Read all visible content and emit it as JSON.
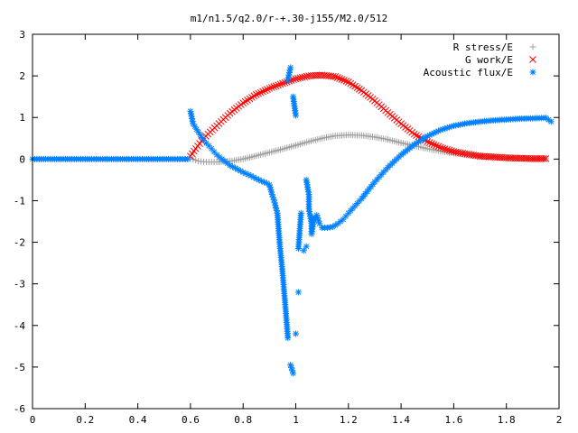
{
  "chart_data": {
    "type": "scatter",
    "title": "m1/n1.5/q2.0/r-+.30-j155/M2.0/512",
    "xlabel": "",
    "ylabel": "",
    "xlim": [
      0,
      2
    ],
    "ylim": [
      -6,
      3
    ],
    "x_ticks": [
      "0",
      "0.2",
      "0.4",
      "0.6",
      "0.8",
      "1",
      "1.2",
      "1.4",
      "1.6",
      "1.8",
      "2"
    ],
    "y_ticks": [
      "-6",
      "-5",
      "-4",
      "-3",
      "-2",
      "-1",
      "0",
      "1",
      "2",
      "3"
    ],
    "grid": false,
    "legend_position": "top-right",
    "series": [
      {
        "name": "R stress/E",
        "marker": "plus",
        "color": "#a0a0a0",
        "x": [
          0.6,
          0.63,
          0.66,
          0.7,
          0.75,
          0.8,
          0.85,
          0.9,
          0.95,
          1.0,
          1.05,
          1.1,
          1.15,
          1.2,
          1.25,
          1.3,
          1.35,
          1.4,
          1.45,
          1.5,
          1.55,
          1.6,
          1.65,
          1.7,
          1.75,
          1.8,
          1.85,
          1.9,
          1.95
        ],
        "y": [
          0.02,
          -0.05,
          -0.07,
          -0.07,
          -0.05,
          0.0,
          0.08,
          0.16,
          0.24,
          0.33,
          0.42,
          0.5,
          0.56,
          0.58,
          0.57,
          0.53,
          0.47,
          0.39,
          0.32,
          0.25,
          0.19,
          0.14,
          0.1,
          0.07,
          0.05,
          0.03,
          0.02,
          0.01,
          0.01
        ]
      },
      {
        "name": "G work/E",
        "marker": "cross",
        "color": "#ff0000",
        "x": [
          0.6,
          0.62,
          0.65,
          0.7,
          0.75,
          0.8,
          0.85,
          0.9,
          0.95,
          1.0,
          1.05,
          1.1,
          1.15,
          1.2,
          1.25,
          1.3,
          1.35,
          1.4,
          1.45,
          1.5,
          1.55,
          1.6,
          1.65,
          1.7,
          1.75,
          1.8,
          1.85,
          1.9,
          1.95
        ],
        "y": [
          0.07,
          0.25,
          0.5,
          0.8,
          1.1,
          1.35,
          1.55,
          1.7,
          1.82,
          1.93,
          2.0,
          2.02,
          1.98,
          1.85,
          1.65,
          1.4,
          1.12,
          0.85,
          0.6,
          0.42,
          0.28,
          0.18,
          0.12,
          0.07,
          0.05,
          0.03,
          0.02,
          0.01,
          0.01
        ]
      },
      {
        "name": "Acoustic flux/E",
        "marker": "star",
        "color": "#0080ff",
        "x": [
          0.0,
          0.05,
          0.1,
          0.15,
          0.2,
          0.25,
          0.3,
          0.35,
          0.4,
          0.45,
          0.5,
          0.55,
          0.59,
          0.6,
          0.61,
          0.63,
          0.65,
          0.68,
          0.7,
          0.73,
          0.75,
          0.78,
          0.8,
          0.83,
          0.85,
          0.87,
          0.89,
          0.9,
          0.91,
          0.92,
          0.93,
          0.94,
          0.95,
          0.96,
          0.97,
          0.97,
          0.98,
          0.98,
          0.99,
          0.99,
          1.0,
          1.0,
          1.01,
          1.01,
          1.02,
          1.03,
          1.04,
          1.04,
          1.05,
          1.05,
          1.06,
          1.06,
          1.07,
          1.08,
          1.09,
          1.1,
          1.12,
          1.14,
          1.16,
          1.18,
          1.2,
          1.25,
          1.3,
          1.35,
          1.4,
          1.45,
          1.5,
          1.55,
          1.6,
          1.65,
          1.7,
          1.75,
          1.8,
          1.85,
          1.9,
          1.95,
          1.97
        ],
        "y": [
          0,
          0,
          0,
          0,
          0,
          0,
          0,
          0,
          0,
          0,
          0,
          0,
          0,
          1.15,
          0.85,
          0.65,
          0.45,
          0.25,
          0.1,
          -0.05,
          -0.15,
          -0.25,
          -0.32,
          -0.4,
          -0.47,
          -0.53,
          -0.58,
          -0.62,
          -0.85,
          -1.05,
          -1.3,
          -2.1,
          -2.75,
          -3.5,
          -4.3,
          1.9,
          2.2,
          -4.95,
          -5.15,
          1.5,
          1.05,
          -4.2,
          -3.2,
          -2.15,
          -1.3,
          -2.2,
          -2.1,
          -0.5,
          -0.85,
          -1.2,
          -1.55,
          -1.8,
          -1.4,
          -1.35,
          -1.55,
          -1.65,
          -1.65,
          -1.63,
          -1.55,
          -1.45,
          -1.3,
          -0.95,
          -0.55,
          -0.2,
          0.1,
          0.35,
          0.55,
          0.7,
          0.8,
          0.86,
          0.9,
          0.93,
          0.95,
          0.97,
          0.98,
          0.99,
          0.9
        ]
      }
    ]
  }
}
